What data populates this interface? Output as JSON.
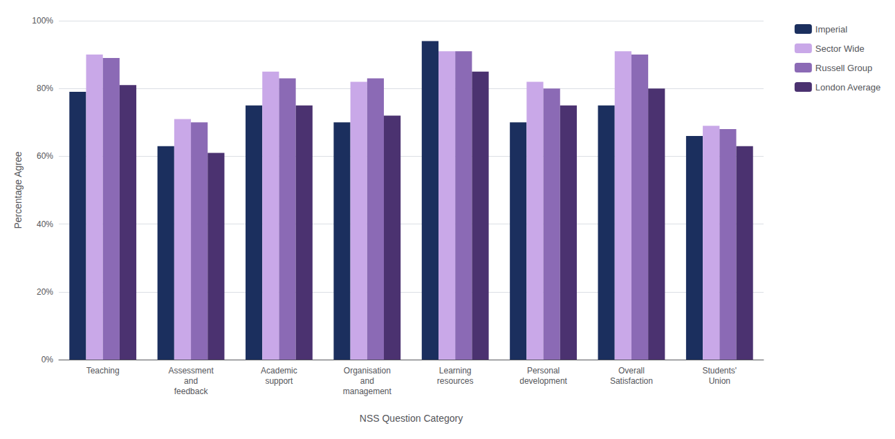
{
  "chart_data": {
    "type": "bar",
    "categories": [
      "Teaching",
      "Assessment\nand\nfeedback",
      "Academic\nsupport",
      "Organisation\nand\nmanagement",
      "Learning\nresources",
      "Personal\ndevelopment",
      "Overall\nSatisfaction",
      "Students'\nUnion"
    ],
    "series": [
      {
        "name": "Imperial",
        "color": "#1b2f5e",
        "values": [
          79,
          63,
          75,
          70,
          94,
          70,
          75,
          66
        ]
      },
      {
        "name": "Sector Wide",
        "color": "#c9a8e8",
        "values": [
          90,
          71,
          85,
          82,
          91,
          82,
          91,
          69
        ]
      },
      {
        "name": "Russell Group",
        "color": "#8b6ab5",
        "values": [
          89,
          70,
          83,
          83,
          91,
          80,
          90,
          68
        ]
      },
      {
        "name": "London Average",
        "color": "#4b3270",
        "values": [
          81,
          61,
          75,
          72,
          85,
          75,
          80,
          63
        ]
      }
    ],
    "xlabel": "NSS Question Category",
    "ylabel": "Percentage Agree",
    "ylim": [
      0,
      100
    ],
    "yticks": [
      {
        "value": 0,
        "label": "0%"
      },
      {
        "value": 20,
        "label": "20%"
      },
      {
        "value": 40,
        "label": "40%"
      },
      {
        "value": 60,
        "label": "60%"
      },
      {
        "value": 80,
        "label": "80%"
      },
      {
        "value": 100,
        "label": "100%"
      }
    ],
    "grid": true,
    "legend": "right"
  }
}
